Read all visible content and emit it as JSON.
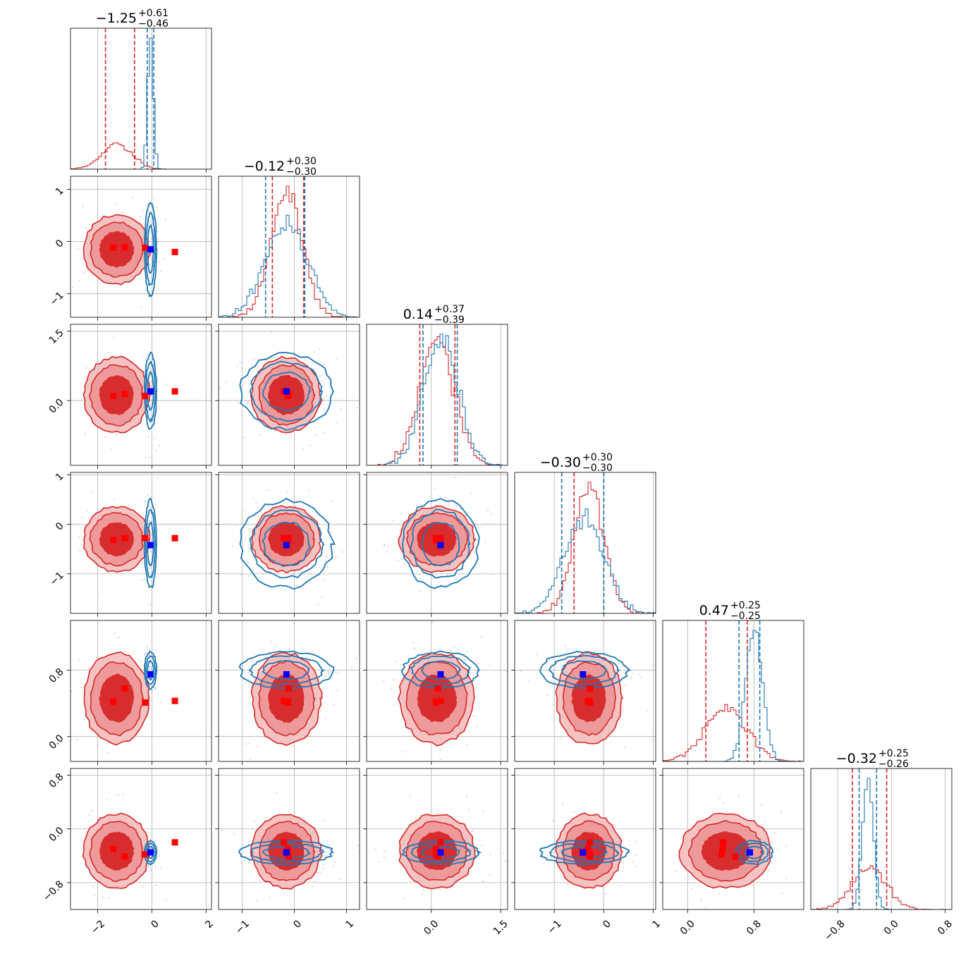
{
  "chart_data": {
    "type": "corner",
    "grid": true,
    "colors": {
      "red": "#d62728",
      "blue": "#1f77b4",
      "truth_red": "#ff0000",
      "truth_blue": "#0000ff"
    },
    "n_params": 6,
    "ranges": [
      [
        -3.0,
        2.2
      ],
      [
        -1.45,
        1.25
      ],
      [
        -1.4,
        1.65
      ],
      [
        -1.8,
        1.05
      ],
      [
        -0.3,
        1.4
      ],
      [
        -1.2,
        0.9
      ]
    ],
    "ticks": [
      {
        "values": [
          -2,
          0,
          2
        ],
        "labels": [
          "−2",
          "0",
          "2"
        ]
      },
      {
        "values": [
          -1,
          0,
          1
        ],
        "labels": [
          "−1",
          "0",
          "1"
        ]
      },
      {
        "values": [
          0.0,
          1.5
        ],
        "labels": [
          "0.0",
          "1.5"
        ]
      },
      {
        "values": [
          -1,
          0,
          1
        ],
        "labels": [
          "−1",
          "0",
          "1"
        ]
      },
      {
        "values": [
          0.0,
          0.8
        ],
        "labels": [
          "0.0",
          "0.8"
        ]
      },
      {
        "values": [
          -0.8,
          0.0,
          0.8
        ],
        "labels": [
          "−0.8",
          "0.0",
          "0.8"
        ]
      }
    ],
    "titles": [
      {
        "main": "−1.25",
        "plus": "+0.61",
        "minus": "−0.46"
      },
      {
        "main": "−0.12",
        "plus": "+0.30",
        "minus": "−0.30"
      },
      {
        "main": "0.14",
        "plus": "+0.37",
        "minus": "−0.39"
      },
      {
        "main": "−0.30",
        "plus": "+0.30",
        "minus": "−0.30"
      },
      {
        "main": "0.47",
        "plus": "+0.25",
        "minus": "−0.25"
      },
      {
        "main": "−0.32",
        "plus": "+0.25",
        "minus": "−0.26"
      }
    ],
    "series": [
      {
        "color": "red",
        "means": [
          -1.3,
          -0.15,
          0.12,
          -0.3,
          0.46,
          -0.33
        ],
        "sds": [
          0.55,
          0.3,
          0.37,
          0.3,
          0.25,
          0.25
        ],
        "quantiles": [
          [
            -1.71,
            -0.64
          ],
          [
            -0.42,
            0.18
          ],
          [
            -0.25,
            0.51
          ],
          [
            -0.6,
            0.0
          ],
          [
            0.22,
            0.72
          ],
          [
            -0.58,
            -0.07
          ]
        ]
      },
      {
        "color": "blue",
        "means": [
          -0.05,
          -0.15,
          0.2,
          -0.4,
          0.8,
          -0.35
        ],
        "sds": [
          0.1,
          0.4,
          0.37,
          0.4,
          0.1,
          0.08
        ],
        "quantiles": [
          [
            -0.17,
            0.07
          ],
          [
            -0.55,
            0.2
          ],
          [
            -0.18,
            0.56
          ],
          [
            -0.85,
            0.0
          ],
          [
            0.62,
            0.87
          ],
          [
            -0.48,
            -0.22
          ]
        ]
      }
    ],
    "truths_red": [
      [
        -1.42,
        -0.12,
        0.1,
        -0.32,
        0.42,
        -0.3
      ],
      [
        -1.0,
        -0.11,
        0.14,
        -0.28,
        0.58,
        -0.41
      ],
      [
        -0.25,
        -0.12,
        0.1,
        -0.28,
        0.41,
        -0.38
      ],
      [
        0.85,
        -0.2,
        0.2,
        -0.28,
        0.43,
        -0.2
      ]
    ],
    "truths_blue": [
      [
        -0.05,
        -0.15,
        0.2,
        -0.42,
        0.75,
        -0.35
      ]
    ]
  }
}
